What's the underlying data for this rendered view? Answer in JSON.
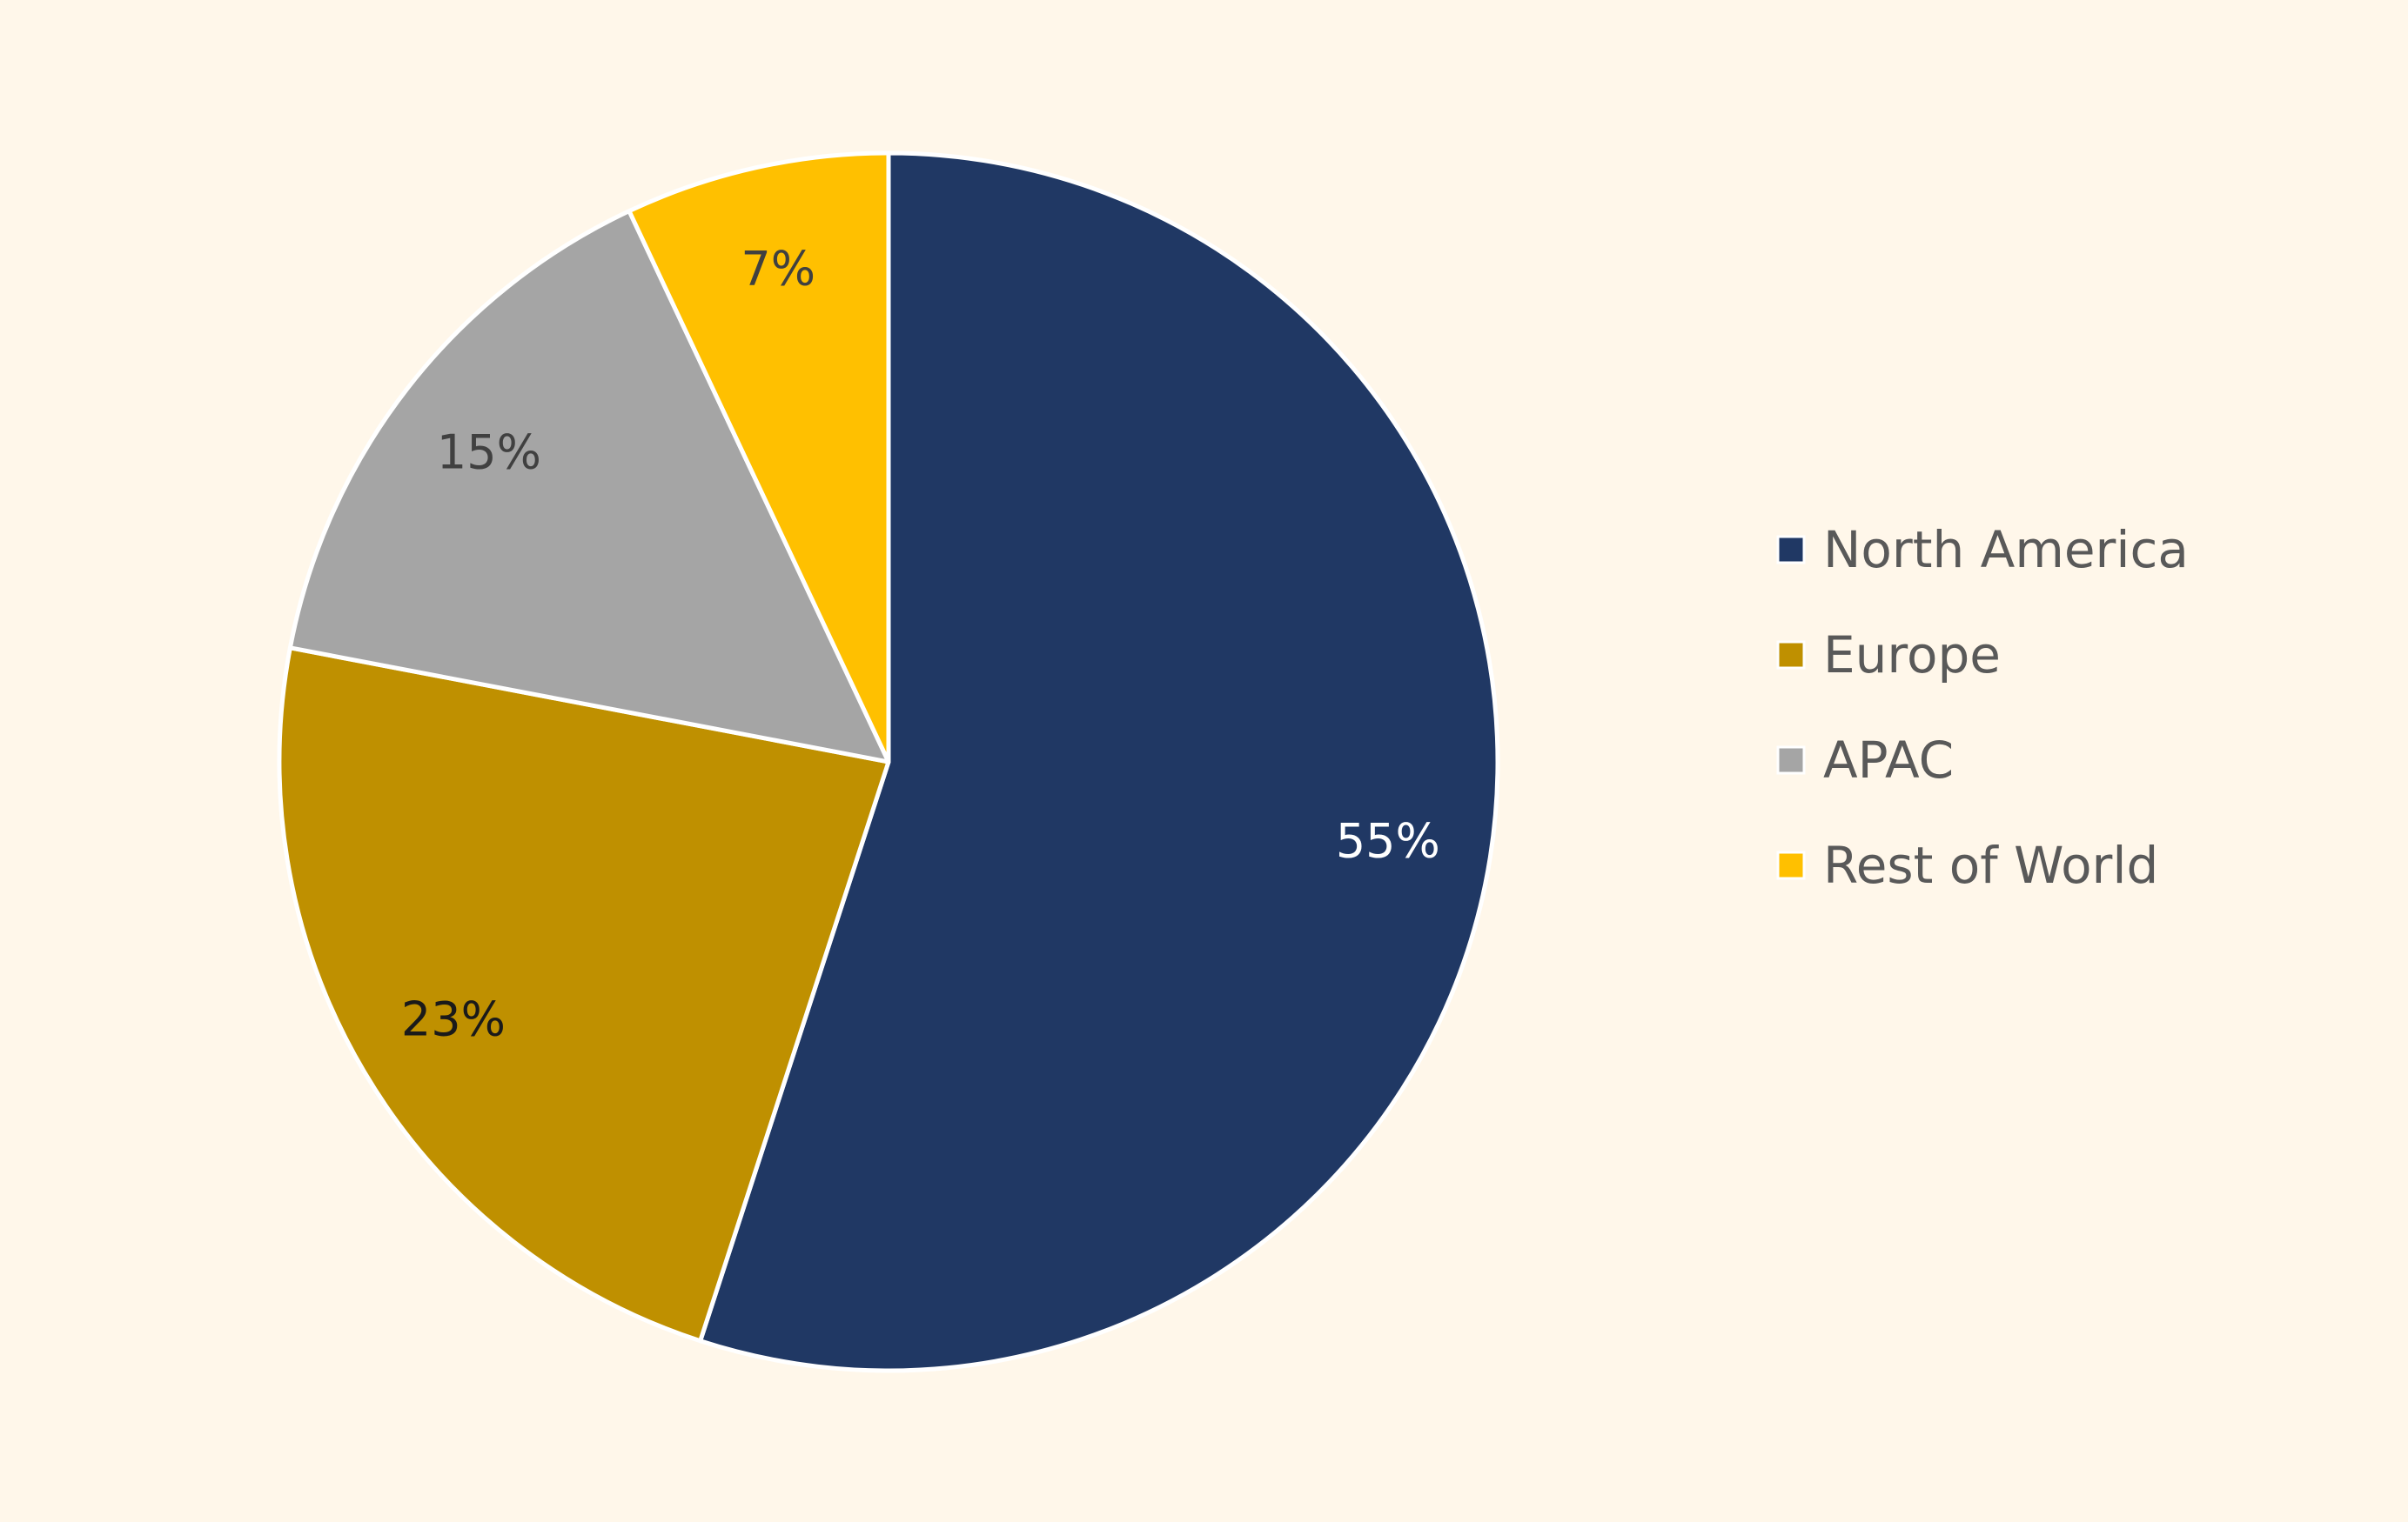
{
  "chart_data": {
    "type": "pie",
    "title": "",
    "start_angle_deg": 0,
    "direction": "clockwise",
    "slices": [
      {
        "name": "North America",
        "value": 55,
        "label": "55%",
        "color": "#203864",
        "label_color": "#FFFFFF"
      },
      {
        "name": "Europe",
        "value": 23,
        "label": "23%",
        "color": "#BF9000",
        "label_color": "#1A1A1A"
      },
      {
        "name": "APAC",
        "value": 15,
        "label": "15%",
        "color": "#A5A5A5",
        "label_color": "#404040"
      },
      {
        "name": "Rest of World",
        "value": 7,
        "label": "7%",
        "color": "#FFC000",
        "label_color": "#404040"
      }
    ],
    "legend": {
      "position": "right",
      "entries": [
        "North America",
        "Europe",
        "APAC",
        "Rest of World"
      ]
    },
    "background_color": "#FFF7EA",
    "slice_border_color": "#FFFFFF"
  }
}
